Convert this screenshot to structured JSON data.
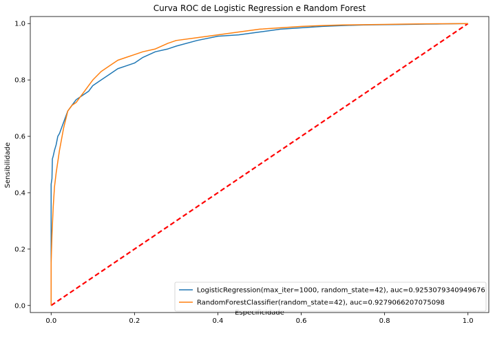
{
  "chart_data": {
    "type": "line",
    "title": "Curva ROC de Logistic Regression e Random Forest",
    "xlabel": "Especificidade",
    "ylabel": "Sensibilidade",
    "xlim": [
      -0.05,
      1.05
    ],
    "ylim": [
      -0.025,
      1.025
    ],
    "xticks": [
      0.0,
      0.2,
      0.4,
      0.6,
      0.8,
      1.0
    ],
    "yticks": [
      0.0,
      0.2,
      0.4,
      0.6,
      0.8,
      1.0
    ],
    "xtick_labels": [
      "0.0",
      "0.2",
      "0.4",
      "0.6",
      "0.8",
      "1.0"
    ],
    "ytick_labels": [
      "0.0",
      "0.2",
      "0.4",
      "0.6",
      "0.8",
      "1.0"
    ],
    "grid": false,
    "legend_position": "lower-right",
    "series": [
      {
        "name": "LogisticRegression(max_iter=1000, random_state=42), auc=0.9253079340949676",
        "color": "#1f77b4",
        "x": [
          0.0,
          0.0,
          0.002,
          0.003,
          0.005,
          0.008,
          0.012,
          0.016,
          0.02,
          0.025,
          0.03,
          0.035,
          0.04,
          0.05,
          0.06,
          0.07,
          0.08,
          0.09,
          0.1,
          0.12,
          0.14,
          0.16,
          0.18,
          0.2,
          0.22,
          0.25,
          0.28,
          0.3,
          0.35,
          0.4,
          0.45,
          0.5,
          0.55,
          0.6,
          0.65,
          0.7,
          0.75,
          0.8,
          0.85,
          0.9,
          0.95,
          1.0
        ],
        "y": [
          0.0,
          0.43,
          0.45,
          0.52,
          0.53,
          0.55,
          0.57,
          0.6,
          0.61,
          0.63,
          0.65,
          0.67,
          0.69,
          0.71,
          0.73,
          0.74,
          0.75,
          0.76,
          0.78,
          0.8,
          0.82,
          0.84,
          0.85,
          0.86,
          0.88,
          0.9,
          0.91,
          0.92,
          0.94,
          0.955,
          0.96,
          0.97,
          0.98,
          0.985,
          0.99,
          0.993,
          0.995,
          0.996,
          0.997,
          0.998,
          0.999,
          1.0
        ]
      },
      {
        "name": "RandomForestClassifier(random_state=42), auc=0.9279066207075098",
        "color": "#ff7f0e",
        "x": [
          0.0,
          0.0,
          0.002,
          0.005,
          0.008,
          0.012,
          0.016,
          0.02,
          0.025,
          0.03,
          0.035,
          0.04,
          0.05,
          0.06,
          0.07,
          0.08,
          0.09,
          0.1,
          0.12,
          0.14,
          0.16,
          0.18,
          0.2,
          0.22,
          0.25,
          0.28,
          0.3,
          0.35,
          0.4,
          0.45,
          0.5,
          0.55,
          0.6,
          0.65,
          0.7,
          0.75,
          0.8,
          0.85,
          0.9,
          0.95,
          1.0
        ],
        "y": [
          0.0,
          0.15,
          0.25,
          0.35,
          0.42,
          0.47,
          0.51,
          0.55,
          0.59,
          0.63,
          0.66,
          0.69,
          0.71,
          0.72,
          0.74,
          0.76,
          0.78,
          0.8,
          0.83,
          0.85,
          0.87,
          0.88,
          0.89,
          0.9,
          0.91,
          0.93,
          0.94,
          0.95,
          0.96,
          0.97,
          0.98,
          0.985,
          0.99,
          0.993,
          0.995,
          0.996,
          0.997,
          0.998,
          0.999,
          0.9995,
          1.0
        ]
      },
      {
        "name": "",
        "color": "#ff0000",
        "dashed": true,
        "x": [
          0.0,
          1.0
        ],
        "y": [
          0.0,
          1.0
        ]
      }
    ]
  }
}
